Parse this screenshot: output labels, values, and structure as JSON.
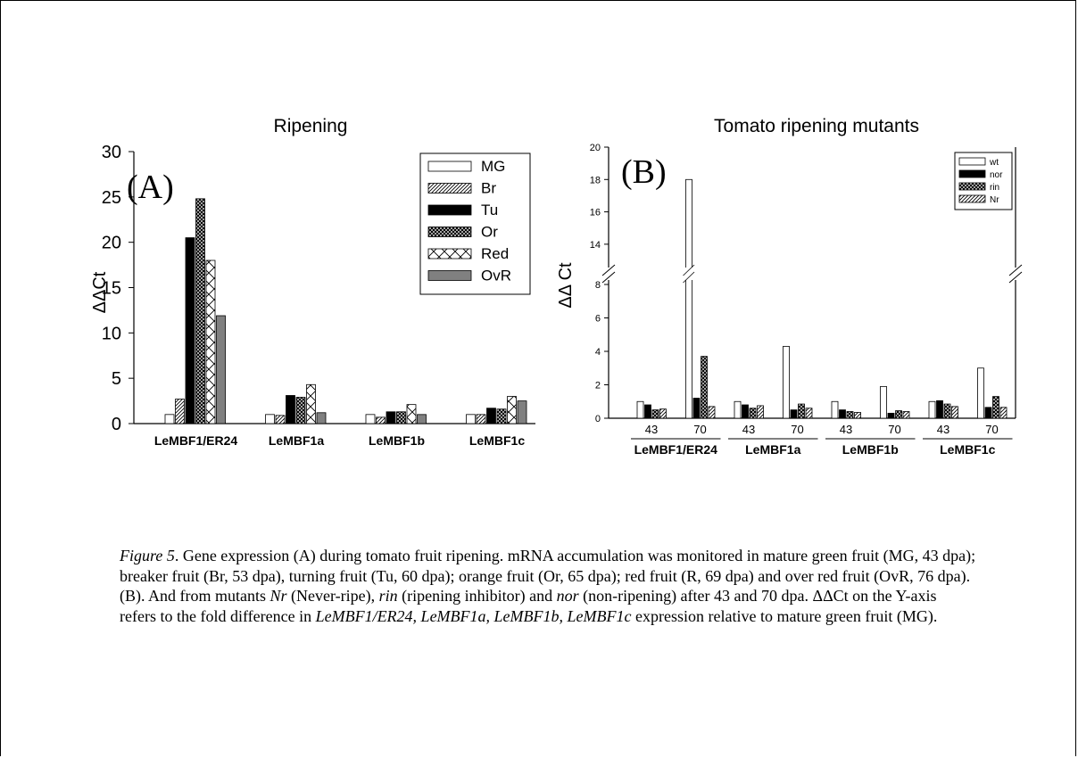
{
  "colors": {
    "axis": "#000000",
    "bar_fill_light": "#ffffff",
    "bar_solid": "#000000",
    "bar_gray": "#808080"
  },
  "panel_a": {
    "title": "Ripening",
    "panel_label": "(A)",
    "ylabel": "ΔΔCt"
  },
  "panel_b": {
    "title": "Tomato ripening mutants",
    "panel_label": "(B)",
    "ylabel": "ΔΔ Ct"
  },
  "chart_data": [
    {
      "type": "bar",
      "title": "Ripening",
      "xlabel": "",
      "ylabel": "ΔΔCt",
      "ylim": [
        0,
        30
      ],
      "yticks": [
        0,
        5,
        10,
        15,
        20,
        25,
        30
      ],
      "grid": false,
      "legend_position": "top-right",
      "categories": [
        "LeMBF1/ER24",
        "LeMBF1a",
        "LeMBF1b",
        "LeMBF1c"
      ],
      "series": [
        {
          "name": "MG",
          "pattern": "white",
          "values": [
            1.0,
            1.0,
            1.0,
            1.0
          ]
        },
        {
          "name": "Br",
          "pattern": "diagonal",
          "values": [
            2.7,
            0.9,
            0.7,
            1.0
          ]
        },
        {
          "name": "Tu",
          "pattern": "black",
          "values": [
            20.5,
            3.1,
            1.3,
            1.7
          ]
        },
        {
          "name": "Or",
          "pattern": "crosshatch",
          "values": [
            24.8,
            2.9,
            1.3,
            1.6
          ]
        },
        {
          "name": "Red",
          "pattern": "xpattern",
          "values": [
            18.0,
            4.3,
            2.1,
            3.0
          ]
        },
        {
          "name": "OvR",
          "pattern": "gray",
          "values": [
            11.9,
            1.2,
            1.0,
            2.5
          ]
        }
      ]
    },
    {
      "type": "bar",
      "title": "Tomato ripening mutants",
      "xlabel": "",
      "ylabel": "ΔΔ Ct",
      "ylim": [
        0,
        20
      ],
      "axis_break": [
        8,
        13
      ],
      "yticks_lower": [
        0,
        2,
        4,
        6,
        8
      ],
      "yticks_upper": [
        14,
        16,
        18,
        20
      ],
      "grid": false,
      "legend_position": "top-right",
      "gene_labels": [
        "LeMBF1/ER24",
        "LeMBF1a",
        "LeMBF1b",
        "LeMBF1c"
      ],
      "categories": [
        "43",
        "70",
        "43",
        "70",
        "43",
        "70",
        "43",
        "70"
      ],
      "series": [
        {
          "name": "wt",
          "pattern": "white",
          "values": [
            1.0,
            18.0,
            1.0,
            4.3,
            1.0,
            1.9,
            1.0,
            3.0
          ]
        },
        {
          "name": "nor",
          "pattern": "black",
          "values": [
            0.8,
            1.2,
            0.8,
            0.5,
            0.5,
            0.3,
            1.05,
            0.65
          ]
        },
        {
          "name": "rin",
          "pattern": "crosshatch",
          "values": [
            0.5,
            3.7,
            0.6,
            0.85,
            0.4,
            0.45,
            0.85,
            1.3
          ]
        },
        {
          "name": "Nr",
          "pattern": "diagonal",
          "values": [
            0.55,
            0.7,
            0.75,
            0.6,
            0.35,
            0.4,
            0.7,
            0.65
          ]
        }
      ]
    }
  ],
  "caption": {
    "label": "Figure 5",
    "t1": ".  Gene expression (A) during tomato fruit ripening. mRNA accumulation was monitored in mature green fruit (MG, 43 dpa); breaker fruit (Br, 53 dpa), turning fruit (Tu, 60 dpa); orange fruit (Or, 65 dpa); red fruit (R, 69 dpa) and over red fruit (OvR, 76 dpa). (B). And from mutants ",
    "nr": "Nr",
    "t2": " (Never-ripe), ",
    "rin": "rin",
    "t3": " (ripening inhibitor) and ",
    "nor": "nor",
    "t4": " (non-ripening) after 43 and 70 dpa. ΔΔCt on the Y-axis refers to the fold difference in ",
    "genes": "LeMBF1/ER24, LeMBF1a, LeMBF1b, LeMBF1c",
    "t5": " expression relative to mature green fruit (MG)."
  }
}
